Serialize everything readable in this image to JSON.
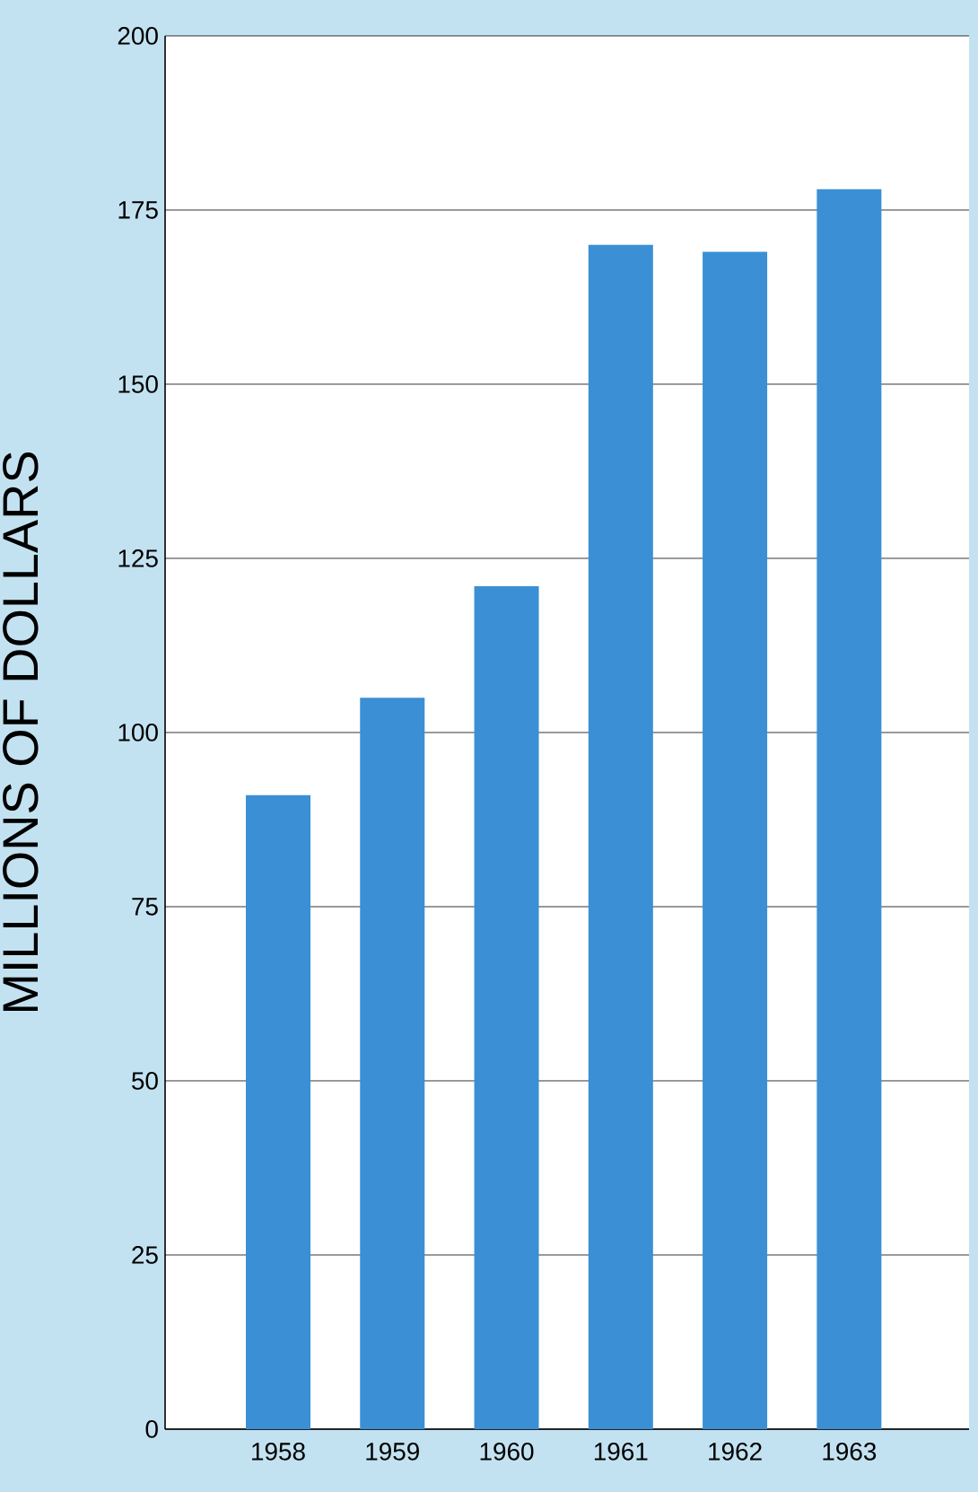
{
  "chart_data": {
    "type": "bar",
    "ylabel": "MILLIONS OF DOLLARS",
    "categories": [
      "1958",
      "1959",
      "1960",
      "1961",
      "1962",
      "1963"
    ],
    "values": [
      91,
      105,
      121,
      170,
      169,
      178
    ],
    "color": "#3b8fd4",
    "ylim": [
      0,
      200
    ],
    "yticks": [
      0,
      25,
      50,
      75,
      100,
      125,
      150,
      175,
      200
    ],
    "grid": "y"
  }
}
